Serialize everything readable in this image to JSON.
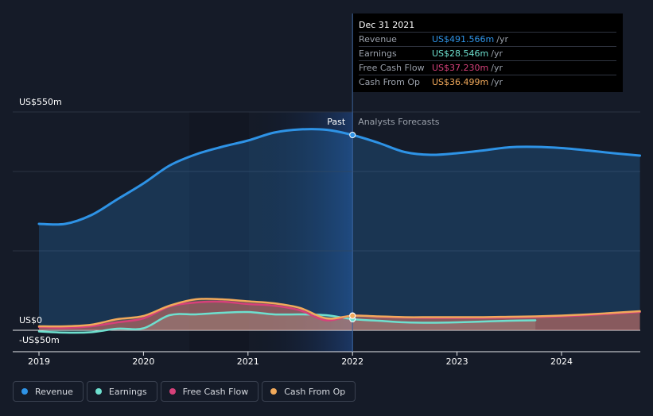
{
  "tooltip": {
    "date": "Dec 31 2021",
    "rows": [
      {
        "label": "Revenue",
        "value": "US$491.566m",
        "unit": "/yr",
        "color": "#2e93e6"
      },
      {
        "label": "Earnings",
        "value": "US$28.546m",
        "unit": "/yr",
        "color": "#6ee0cf"
      },
      {
        "label": "Free Cash Flow",
        "value": "US$37.230m",
        "unit": "/yr",
        "color": "#d6417a"
      },
      {
        "label": "Cash From Op",
        "value": "US$36.499m",
        "unit": "/yr",
        "color": "#f1a95b"
      }
    ]
  },
  "legend": [
    {
      "label": "Revenue",
      "color": "#2e93e6"
    },
    {
      "label": "Earnings",
      "color": "#6ee0cf"
    },
    {
      "label": "Free Cash Flow",
      "color": "#d6417a"
    },
    {
      "label": "Cash From Op",
      "color": "#f1a95b"
    }
  ],
  "chart_data": {
    "type": "area",
    "y_axis_labels": [
      "US$550m",
      "US$0",
      "-US$50m"
    ],
    "ylim": [
      -50,
      550
    ],
    "x_ticks": [
      "2019",
      "2020",
      "2021",
      "2022",
      "2023",
      "2024"
    ],
    "xlim": [
      2018.95,
      2024.75
    ],
    "divider_x": 2022.0,
    "past_label": "Past",
    "forecast_label": "Analysts Forecasts",
    "highlight_x": 2022.0,
    "series": [
      {
        "name": "Revenue",
        "color": "#2e93e6",
        "x": [
          2019.0,
          2019.25,
          2019.5,
          2019.75,
          2020.0,
          2020.25,
          2020.5,
          2020.75,
          2021.0,
          2021.25,
          2021.5,
          2021.75,
          2022.0,
          2022.25,
          2022.5,
          2022.75,
          2023.0,
          2023.25,
          2023.5,
          2023.75,
          2024.0,
          2024.25,
          2024.5,
          2024.75
        ],
        "y": [
          268,
          268,
          290,
          330,
          370,
          415,
          443,
          462,
          478,
          498,
          506,
          505,
          492,
          472,
          449,
          442,
          446,
          453,
          461,
          462,
          459,
          453,
          446,
          440
        ]
      },
      {
        "name": "Earnings",
        "color": "#6ee0cf",
        "x": [
          2019.0,
          2019.25,
          2019.5,
          2019.75,
          2020.0,
          2020.25,
          2020.5,
          2020.75,
          2021.0,
          2021.25,
          2021.5,
          2021.75,
          2022.0,
          2022.25,
          2022.5,
          2022.75,
          2023.0,
          2023.25,
          2023.5,
          2023.75
        ],
        "y": [
          -3,
          -6,
          -5,
          4,
          5,
          38,
          40,
          44,
          46,
          40,
          40,
          38,
          28,
          24,
          20,
          19,
          20,
          22,
          24,
          25
        ]
      },
      {
        "name": "Free Cash Flow",
        "color": "#d6417a",
        "x": [
          2019.0,
          2019.25,
          2019.5,
          2019.75,
          2020.0,
          2020.25,
          2020.5,
          2020.75,
          2021.0,
          2021.25,
          2021.5,
          2021.75,
          2022.0,
          2022.25,
          2022.5,
          2022.75,
          2023.0,
          2023.25,
          2023.5,
          2023.75,
          2024.0,
          2024.25,
          2024.5,
          2024.75
        ],
        "y": [
          8,
          6,
          10,
          20,
          30,
          60,
          70,
          72,
          66,
          62,
          50,
          25,
          37,
          34,
          32,
          31,
          31,
          31,
          32,
          33,
          35,
          38,
          42,
          46
        ]
      },
      {
        "name": "Cash From Op",
        "color": "#f1a95b",
        "x": [
          2019.0,
          2019.25,
          2019.5,
          2019.75,
          2020.0,
          2020.25,
          2020.5,
          2020.75,
          2021.0,
          2021.25,
          2021.5,
          2021.75,
          2022.0,
          2022.25,
          2022.5,
          2022.75,
          2023.0,
          2023.25,
          2023.5,
          2023.75,
          2024.0,
          2024.25,
          2024.5,
          2024.75
        ],
        "y": [
          10,
          10,
          14,
          28,
          36,
          62,
          78,
          78,
          73,
          68,
          56,
          30,
          36.5,
          35,
          33,
          33,
          33,
          33,
          34,
          35,
          37,
          40,
          44,
          48
        ]
      }
    ]
  }
}
